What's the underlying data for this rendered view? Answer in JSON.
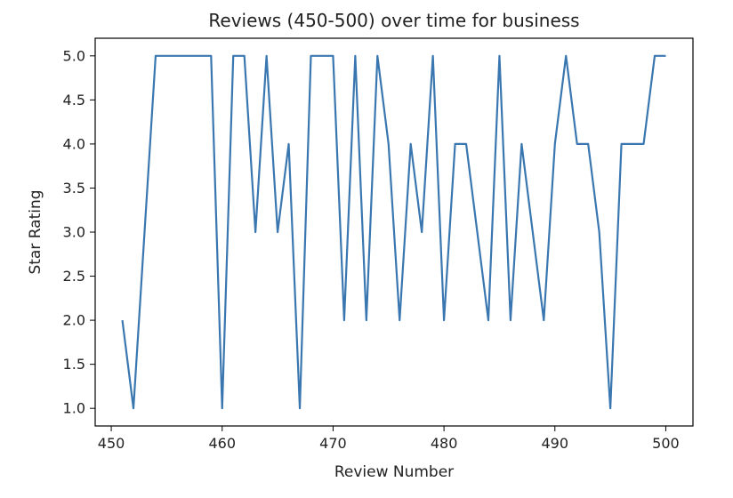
{
  "chart_data": {
    "type": "line",
    "title": "Reviews (450-500) over time for business",
    "xlabel": "Review Number",
    "ylabel": "Star Rating",
    "xlim": [
      448.55,
      502.45
    ],
    "ylim": [
      0.8,
      5.2
    ],
    "xticks": [
      450,
      460,
      470,
      480,
      490,
      500
    ],
    "yticks": [
      1.0,
      1.5,
      2.0,
      2.5,
      3.0,
      3.5,
      4.0,
      4.5,
      5.0
    ],
    "ytick_labels": [
      "1.0",
      "1.5",
      "2.0",
      "2.5",
      "3.0",
      "3.5",
      "4.0",
      "4.5",
      "5.0"
    ],
    "grid": false,
    "line_color": "#3a77b0",
    "series": [
      {
        "x": [
          451,
          452,
          453,
          454,
          455,
          456,
          457,
          458,
          459,
          460,
          461,
          462,
          463,
          464,
          465,
          466,
          467,
          468,
          469,
          470,
          471,
          472,
          473,
          474,
          475,
          476,
          477,
          478,
          479,
          480,
          481,
          482,
          483,
          484,
          485,
          486,
          487,
          488,
          489,
          490,
          491,
          492,
          493,
          494,
          495,
          496,
          497,
          498,
          499,
          500
        ],
        "values": [
          2,
          1,
          3,
          5,
          5,
          5,
          5,
          5,
          5,
          1,
          5,
          5,
          3,
          5,
          3,
          4,
          1,
          5,
          5,
          5,
          2,
          5,
          2,
          5,
          4,
          2,
          4,
          3,
          5,
          2,
          4,
          4,
          3,
          2,
          5,
          2,
          4,
          3,
          2,
          4,
          5,
          4,
          4,
          3,
          1,
          4,
          4,
          4,
          5,
          5
        ]
      }
    ]
  }
}
